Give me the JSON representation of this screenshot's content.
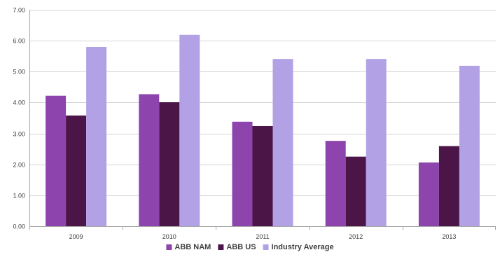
{
  "chart_data": {
    "type": "bar",
    "title": "",
    "xlabel": "",
    "ylabel": "",
    "categories": [
      "2009",
      "2010",
      "2011",
      "2012",
      "2013"
    ],
    "ylim": [
      0,
      7
    ],
    "yticks": [
      0,
      1,
      2,
      3,
      4,
      5,
      6,
      7
    ],
    "ytick_labels": [
      "0.00",
      "1.00",
      "2.00",
      "3.00",
      "4.00",
      "5.00",
      "6.00",
      "7.00"
    ],
    "grid": true,
    "legend_position": "bottom",
    "series": [
      {
        "name": "ABB NAM",
        "color": "#8e44ad",
        "values": [
          4.22,
          4.27,
          3.38,
          2.76,
          2.06
        ]
      },
      {
        "name": "ABB US",
        "color": "#4b1548",
        "values": [
          3.58,
          4.01,
          3.24,
          2.25,
          2.59
        ]
      },
      {
        "name": "Industry Average",
        "color": "#b3a1e6",
        "values": [
          5.8,
          6.19,
          5.41,
          5.41,
          5.19
        ]
      }
    ]
  }
}
